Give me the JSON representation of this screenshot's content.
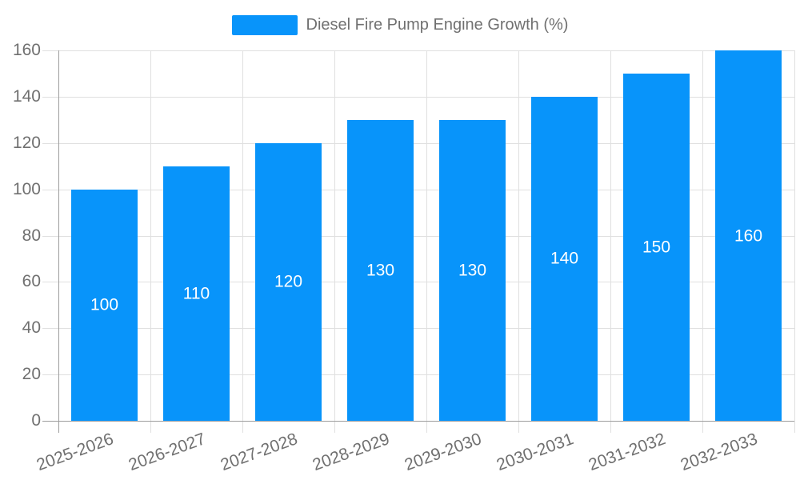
{
  "chart_data": {
    "type": "bar",
    "title": "Diesel Fire Pump Engine Growth (%)",
    "legend": {
      "label": "Diesel Fire Pump Engine Growth (%)",
      "position": "top"
    },
    "categories": [
      "2025-2026",
      "2026-2027",
      "2027-2028",
      "2028-2029",
      "2029-2030",
      "2030-2031",
      "2031-2032",
      "2032-2033"
    ],
    "series": [
      {
        "name": "Diesel Fire Pump Engine Growth (%)",
        "values": [
          100,
          110,
          120,
          130,
          130,
          140,
          150,
          160
        ]
      }
    ],
    "value_labels": [
      "100",
      "110",
      "120",
      "130",
      "130",
      "140",
      "150",
      "160"
    ],
    "xlabel": "",
    "ylabel": "",
    "ylim": [
      0,
      160
    ],
    "yticks": [
      0,
      20,
      40,
      60,
      80,
      100,
      120,
      140,
      160
    ],
    "grid": true,
    "colors": {
      "bar": "#0894FA",
      "grid": "#E0E0E0",
      "axis": "#9E9E9E",
      "text": "#707070",
      "value_label": "#FFFFFF"
    }
  }
}
